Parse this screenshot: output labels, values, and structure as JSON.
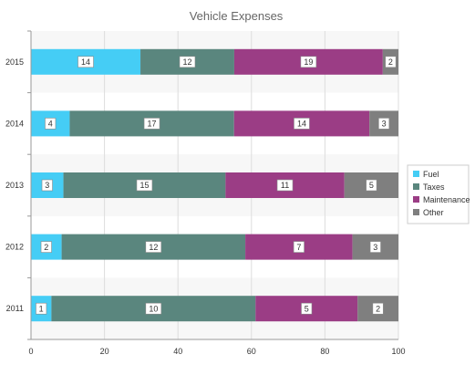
{
  "chart_data": {
    "type": "bar",
    "orientation": "horizontal",
    "stacked": "percent",
    "title": "Vehicle Expenses",
    "categories": [
      "2011",
      "2012",
      "2013",
      "2014",
      "2015"
    ],
    "series": [
      {
        "name": "Fuel",
        "values": [
          1,
          2,
          3,
          4,
          14
        ],
        "color": "#45cdf5"
      },
      {
        "name": "Taxes",
        "values": [
          10,
          12,
          15,
          17,
          12
        ],
        "color": "#5a867e"
      },
      {
        "name": "Maintenance",
        "values": [
          5,
          7,
          11,
          14,
          19
        ],
        "color": "#9b3d85"
      },
      {
        "name": "Other",
        "values": [
          2,
          3,
          5,
          3,
          2
        ],
        "color": "#7f7f7f"
      }
    ],
    "xlim": [
      0,
      100
    ],
    "xticks": [
      "0",
      "20",
      "40",
      "60",
      "80",
      "100"
    ],
    "legend_position": "right",
    "grid": true
  }
}
